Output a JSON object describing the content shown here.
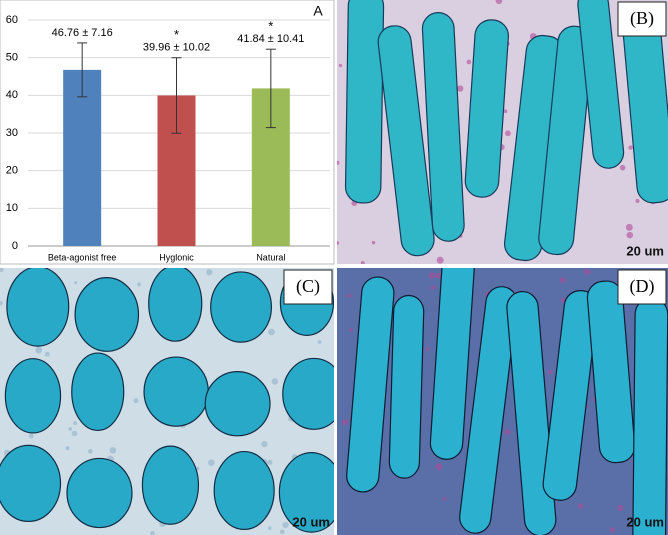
{
  "chart_data": {
    "type": "bar",
    "panel_label": "A",
    "categories": [
      "Beta-agonist free",
      "Hyglonic",
      "Natural"
    ],
    "values": [
      46.76,
      39.96,
      41.84
    ],
    "errors": [
      7.16,
      10.02,
      10.41
    ],
    "value_labels": [
      "46.76 ± 7.16",
      "39.96 ± 10.02",
      "41.84 ± 10.41"
    ],
    "significance": [
      null,
      "*",
      "*"
    ],
    "colors": [
      "#4f81bd",
      "#c0504d",
      "#9bbb59"
    ],
    "ylim": [
      0,
      60
    ],
    "yticks": [
      0,
      10,
      20,
      30,
      40,
      50,
      60
    ],
    "grid": true
  },
  "panels": [
    {
      "label": "(B)",
      "scale_bar": "20 um"
    },
    {
      "label": "(C)",
      "scale_bar": "20 um"
    },
    {
      "label": "(D)",
      "scale_bar": "20 um"
    }
  ]
}
